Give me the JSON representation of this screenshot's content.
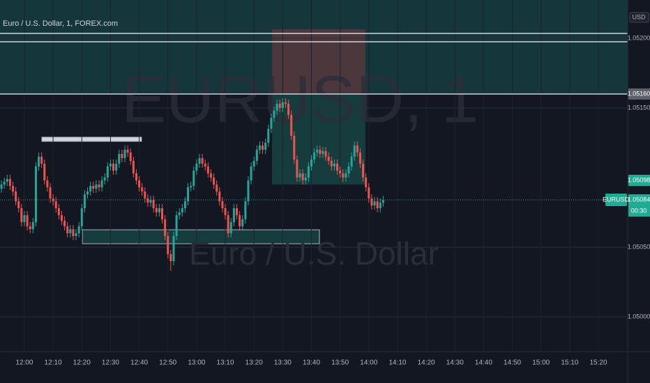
{
  "chart_data": {
    "type": "candlestick",
    "title": "Euro / U.S. Dollar, 1, FOREX.com",
    "watermark": "EURUSD, 1",
    "watermark_subtitle": "Euro / U.S. Dollar",
    "currency": "USD",
    "symbol_label": "EURUSD",
    "countdown": "00:30",
    "up_color": "#26a69a",
    "down_color": "#ef5350",
    "x": [
      712,
      713,
      714,
      715,
      716,
      717,
      718,
      719,
      720,
      721,
      722,
      723,
      724,
      725,
      726,
      727,
      728,
      729,
      730,
      731,
      732,
      733,
      734,
      735,
      736,
      737,
      738,
      739,
      740,
      741,
      742,
      743,
      744,
      745,
      746,
      747,
      748,
      749,
      750,
      751,
      752,
      753,
      754,
      755,
      756,
      757,
      758,
      759,
      760,
      761,
      762,
      763,
      764,
      765,
      766,
      767,
      768,
      769,
      770,
      771,
      772,
      773,
      774,
      775,
      776,
      777,
      778,
      779,
      780,
      781,
      782,
      783,
      784,
      785,
      786,
      787,
      788,
      789,
      790,
      791,
      792,
      793,
      794,
      795,
      796,
      797,
      798,
      799,
      800,
      801,
      802,
      803,
      804,
      805,
      806,
      807,
      808,
      809,
      810,
      811,
      812,
      813,
      814,
      815,
      816,
      817,
      818,
      819,
      820,
      821,
      822,
      823,
      824,
      825,
      826,
      827,
      828,
      829,
      830,
      831,
      832,
      833,
      834,
      835,
      836,
      837,
      838,
      839,
      840,
      841,
      842,
      843,
      844,
      845
    ],
    "open": [
      1.05092,
      1.05095,
      1.05097,
      1.05099,
      1.05094,
      1.0509,
      1.05083,
      1.05078,
      1.05068,
      1.05073,
      1.05065,
      1.05063,
      1.05068,
      1.05108,
      1.05115,
      1.0511,
      1.05098,
      1.05093,
      1.05085,
      1.05083,
      1.05078,
      1.05073,
      1.05069,
      1.05065,
      1.0506,
      1.05063,
      1.05058,
      1.0506,
      1.05065,
      1.05078,
      1.05088,
      1.0509,
      1.05094,
      1.05092,
      1.05095,
      1.05093,
      1.05098,
      1.051,
      1.05108,
      1.0511,
      1.05105,
      1.0511,
      1.05117,
      1.05114,
      1.0512,
      1.05118,
      1.05112,
      1.05103,
      1.05098,
      1.05093,
      1.0509,
      1.05085,
      1.05082,
      1.05084,
      1.05078,
      1.05075,
      1.05078,
      1.0507,
      1.05058,
      1.05045,
      1.0504,
      1.05058,
      1.05073,
      1.05075,
      1.05078,
      1.05083,
      1.05093,
      1.05094,
      1.05105,
      1.0511,
      1.05114,
      1.0511,
      1.05108,
      1.05103,
      1.051,
      1.05095,
      1.0509,
      1.05083,
      1.05078,
      1.05073,
      1.0506,
      1.05068,
      1.05078,
      1.05073,
      1.05065,
      1.0507,
      1.05083,
      1.05098,
      1.05108,
      1.05112,
      1.0512,
      1.05123,
      1.0512,
      1.05125,
      1.05135,
      1.05143,
      1.05148,
      1.05153,
      1.0515,
      1.05154,
      1.05153,
      1.05145,
      1.0513,
      1.05113,
      1.051,
      1.05103,
      1.05098,
      1.051,
      1.05108,
      1.05113,
      1.05118,
      1.0512,
      1.05117,
      1.05119,
      1.05115,
      1.05112,
      1.05108,
      1.0511,
      1.05105,
      1.05103,
      1.051,
      1.05103,
      1.05108,
      1.05115,
      1.05123,
      1.05118,
      1.0511,
      1.051,
      1.05093,
      1.05085,
      1.0508,
      1.05083,
      1.05078,
      1.05082
    ],
    "high": [
      1.05098,
      1.051,
      1.05102,
      1.05102,
      1.05097,
      1.05093,
      1.05086,
      1.05081,
      1.05076,
      1.05076,
      1.05068,
      1.05071,
      1.05111,
      1.05118,
      1.05118,
      1.05113,
      1.05101,
      1.05096,
      1.05088,
      1.05086,
      1.05081,
      1.05076,
      1.05072,
      1.05068,
      1.05066,
      1.05066,
      1.05063,
      1.05068,
      1.05081,
      1.05091,
      1.05093,
      1.05097,
      1.05097,
      1.05098,
      1.05098,
      1.05101,
      1.05103,
      1.05111,
      1.05113,
      1.05113,
      1.05113,
      1.0512,
      1.0512,
      1.05123,
      1.05123,
      1.05121,
      1.05115,
      1.05106,
      1.05101,
      1.05096,
      1.05093,
      1.05088,
      1.05087,
      1.05087,
      1.05081,
      1.05081,
      1.05081,
      1.05073,
      1.05061,
      1.05048,
      1.05061,
      1.05076,
      1.05078,
      1.05081,
      1.05086,
      1.05096,
      1.05097,
      1.05108,
      1.05113,
      1.05117,
      1.05117,
      1.05113,
      1.05111,
      1.05106,
      1.05103,
      1.05098,
      1.05093,
      1.05086,
      1.05081,
      1.05076,
      1.05071,
      1.05081,
      1.05081,
      1.05076,
      1.05073,
      1.05086,
      1.05101,
      1.05111,
      1.05115,
      1.05123,
      1.05126,
      1.05126,
      1.05128,
      1.05138,
      1.05146,
      1.05151,
      1.05156,
      1.05156,
      1.05157,
      1.05157,
      1.05156,
      1.05148,
      1.05133,
      1.05116,
      1.05106,
      1.05106,
      1.05103,
      1.05111,
      1.05116,
      1.05121,
      1.05123,
      1.05123,
      1.05122,
      1.05122,
      1.05118,
      1.05115,
      1.05113,
      1.05113,
      1.05108,
      1.05106,
      1.05106,
      1.05111,
      1.05118,
      1.05126,
      1.05126,
      1.05121,
      1.05113,
      1.05103,
      1.05096,
      1.05088,
      1.05086,
      1.05086,
      1.05085,
      1.05087
    ],
    "low": [
      1.05089,
      1.05092,
      1.05094,
      1.05091,
      1.05087,
      1.0508,
      1.05075,
      1.05065,
      1.05065,
      1.05062,
      1.0506,
      1.0506,
      1.05065,
      1.05105,
      1.05107,
      1.05095,
      1.0509,
      1.05082,
      1.0508,
      1.05075,
      1.0507,
      1.05066,
      1.05062,
      1.05057,
      1.05057,
      1.05055,
      1.05055,
      1.05057,
      1.05062,
      1.05075,
      1.05085,
      1.05087,
      1.05089,
      1.05089,
      1.0509,
      1.0509,
      1.05095,
      1.05097,
      1.05105,
      1.05102,
      1.05102,
      1.05107,
      1.05111,
      1.05111,
      1.05115,
      1.05109,
      1.051,
      1.05095,
      1.0509,
      1.05087,
      1.05082,
      1.05079,
      1.05079,
      1.05075,
      1.05072,
      1.05072,
      1.05067,
      1.05055,
      1.05042,
      1.05033,
      1.05037,
      1.05055,
      1.0507,
      1.05072,
      1.05075,
      1.0508,
      1.0509,
      1.05091,
      1.05102,
      1.05107,
      1.05107,
      1.05105,
      1.051,
      1.05097,
      1.05092,
      1.05087,
      1.0508,
      1.05075,
      1.0507,
      1.05057,
      1.05057,
      1.05065,
      1.0507,
      1.05062,
      1.05062,
      1.05067,
      1.0508,
      1.05095,
      1.05105,
      1.05109,
      1.05117,
      1.05117,
      1.05117,
      1.05122,
      1.05132,
      1.0514,
      1.05145,
      1.05147,
      1.05147,
      1.0515,
      1.05142,
      1.05127,
      1.0511,
      1.05097,
      1.05097,
      1.05095,
      1.05095,
      1.05097,
      1.05105,
      1.0511,
      1.05115,
      1.05114,
      1.05114,
      1.05112,
      1.05109,
      1.05105,
      1.05105,
      1.05102,
      1.051,
      1.05097,
      1.05097,
      1.051,
      1.05105,
      1.05112,
      1.05115,
      1.05107,
      1.05097,
      1.0509,
      1.05082,
      1.05077,
      1.05077,
      1.05075,
      1.05075,
      1.05079
    ],
    "close": [
      1.05095,
      1.05097,
      1.05099,
      1.05094,
      1.0509,
      1.05083,
      1.05078,
      1.05068,
      1.05073,
      1.05065,
      1.05063,
      1.05068,
      1.05108,
      1.05115,
      1.0511,
      1.05098,
      1.05093,
      1.05085,
      1.05083,
      1.05078,
      1.05073,
      1.05069,
      1.05065,
      1.0506,
      1.05063,
      1.05058,
      1.0506,
      1.05065,
      1.05078,
      1.05088,
      1.0509,
      1.05094,
      1.05092,
      1.05095,
      1.05093,
      1.05098,
      1.051,
      1.05108,
      1.0511,
      1.05105,
      1.0511,
      1.05117,
      1.05114,
      1.0512,
      1.05118,
      1.05112,
      1.05103,
      1.05098,
      1.05093,
      1.0509,
      1.05085,
      1.05082,
      1.05084,
      1.05078,
      1.05075,
      1.05078,
      1.0507,
      1.05058,
      1.05045,
      1.0504,
      1.05058,
      1.05073,
      1.05075,
      1.05078,
      1.05083,
      1.05093,
      1.05094,
      1.05105,
      1.0511,
      1.05114,
      1.0511,
      1.05108,
      1.05103,
      1.051,
      1.05095,
      1.0509,
      1.05083,
      1.05078,
      1.05073,
      1.0506,
      1.05068,
      1.05078,
      1.05073,
      1.05065,
      1.0507,
      1.05083,
      1.05098,
      1.05108,
      1.05112,
      1.0512,
      1.05123,
      1.0512,
      1.05125,
      1.05135,
      1.05143,
      1.05148,
      1.05153,
      1.0515,
      1.05154,
      1.05153,
      1.05145,
      1.0513,
      1.05113,
      1.051,
      1.05103,
      1.05098,
      1.051,
      1.05108,
      1.05113,
      1.05118,
      1.0512,
      1.05117,
      1.05119,
      1.05115,
      1.05112,
      1.05108,
      1.0511,
      1.05105,
      1.05103,
      1.051,
      1.05103,
      1.05108,
      1.05115,
      1.05123,
      1.05118,
      1.0511,
      1.051,
      1.05093,
      1.05085,
      1.0508,
      1.05083,
      1.05078,
      1.05082,
      1.05084
    ],
    "xlim": [
      711.5,
      930.2
    ],
    "ylim": [
      1.04975,
      1.052275
    ],
    "xticks": [
      {
        "value": 720,
        "label": "12:00"
      },
      {
        "value": 730,
        "label": "12:10"
      },
      {
        "value": 740,
        "label": "12:20"
      },
      {
        "value": 750,
        "label": "12:30"
      },
      {
        "value": 760,
        "label": "12:40"
      },
      {
        "value": 770,
        "label": "12:50"
      },
      {
        "value": 780,
        "label": "13:00"
      },
      {
        "value": 790,
        "label": "13:10"
      },
      {
        "value": 800,
        "label": "13:20"
      },
      {
        "value": 810,
        "label": "13:30"
      },
      {
        "value": 820,
        "label": "13:40"
      },
      {
        "value": 830,
        "label": "13:50"
      },
      {
        "value": 840,
        "label": "14:00"
      },
      {
        "value": 850,
        "label": "14:10"
      },
      {
        "value": 860,
        "label": "14:20"
      },
      {
        "value": 870,
        "label": "14:30"
      },
      {
        "value": 880,
        "label": "14:40"
      },
      {
        "value": 890,
        "label": "14:50"
      },
      {
        "value": 900,
        "label": "15:00"
      },
      {
        "value": 910,
        "label": "15:10"
      },
      {
        "value": 920,
        "label": "15:20"
      }
    ],
    "yticks": [
      {
        "value": 1.05,
        "label": "1.05000"
      },
      {
        "value": 1.0505,
        "label": "1.05050"
      },
      {
        "value": 1.0515,
        "label": "1.05150"
      },
      {
        "value": 1.052,
        "label": "1.05200"
      }
    ],
    "grid": true,
    "horizontal_lines": [
      1.052035,
      1.051975,
      1.0516
    ],
    "price_tags": [
      {
        "value": 1.0516,
        "label": "1.05160",
        "color": "#5d606b"
      },
      {
        "value": 1.05098,
        "label": "1.05098",
        "color": "#22ab94"
      },
      {
        "value": 1.05084,
        "label": "1.05084",
        "color": "#22ab94"
      }
    ],
    "zones": [
      {
        "x": [
          711.5,
          930.2
        ],
        "y": [
          1.0516,
          1.052275
        ],
        "color": "rgba(34,171,148,0.22)",
        "stroke": "none"
      },
      {
        "x": [
          806.3,
          838.8
        ],
        "y": [
          1.0516,
          1.052065
        ],
        "color": "rgba(242,54,69,0.25)",
        "stroke": "none"
      },
      {
        "x": [
          806.3,
          838.8
        ],
        "y": [
          1.05095,
          1.0516
        ],
        "color": "rgba(34,171,148,0.25)",
        "stroke": "none"
      },
      {
        "x": [
          740.2,
          822.8
        ],
        "y": [
          1.050525,
          1.050625
        ],
        "color": "rgba(34,171,148,0.25)",
        "stroke": "#b2b5be"
      },
      {
        "x": [
          726.1,
          760.8
        ],
        "y": [
          1.05126,
          1.05129
        ],
        "color": "#d1d4dc",
        "stroke": "#b2b5be"
      }
    ]
  }
}
